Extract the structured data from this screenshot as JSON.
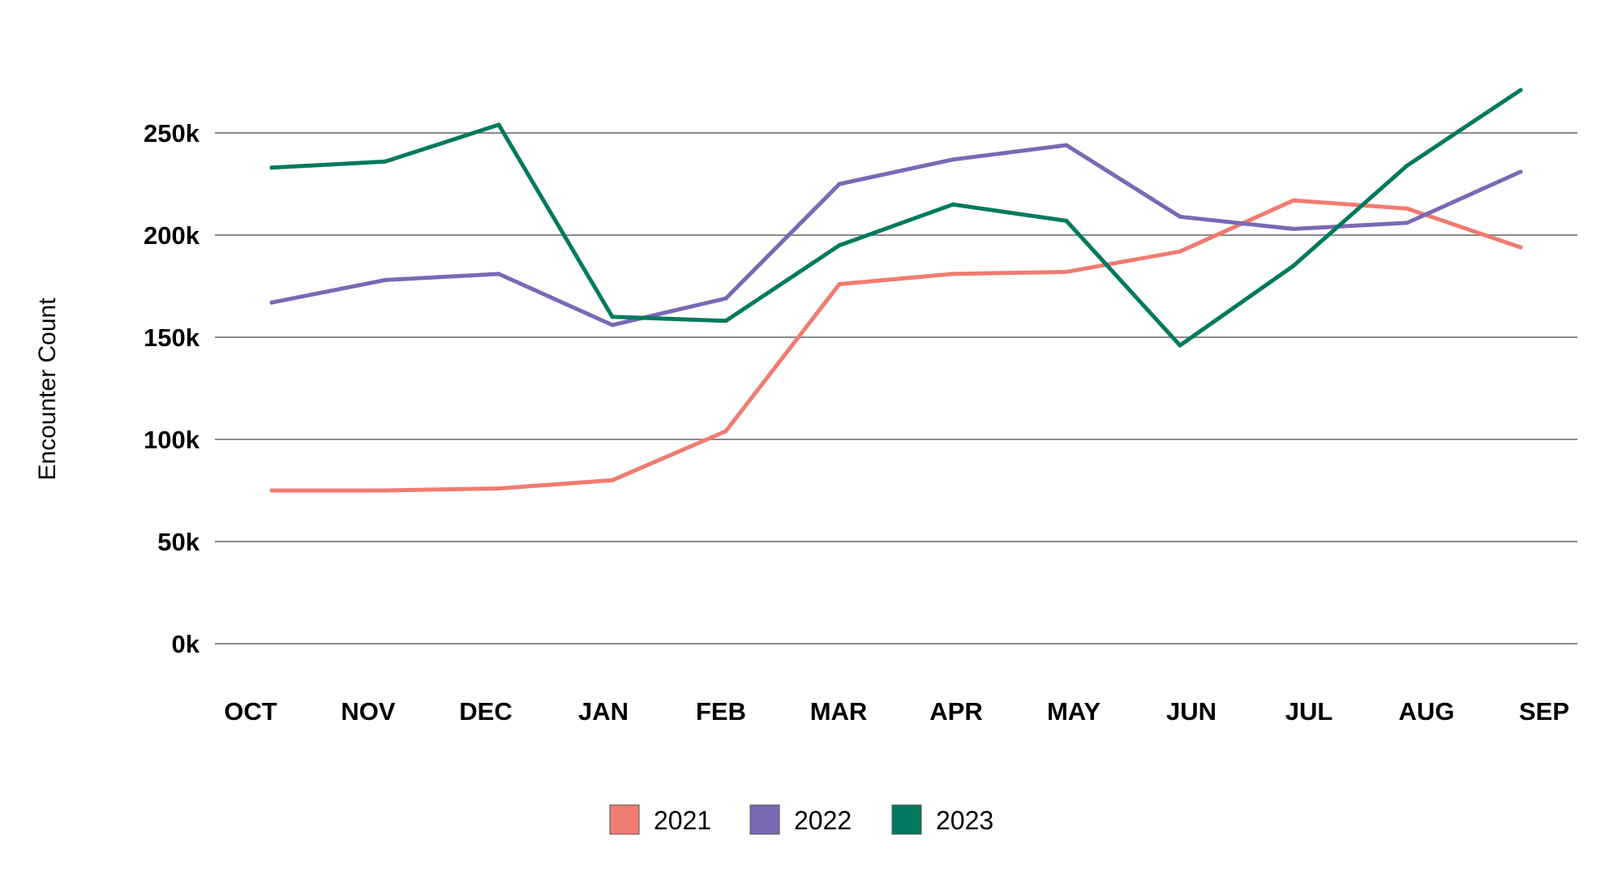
{
  "chart_data": {
    "type": "line",
    "title": "",
    "xlabel": "",
    "ylabel": "Encounter Count",
    "categories": [
      "OCT",
      "NOV",
      "DEC",
      "JAN",
      "FEB",
      "MAR",
      "APR",
      "MAY",
      "JUN",
      "JUL",
      "AUG",
      "SEP"
    ],
    "ylim": [
      0,
      280000
    ],
    "yticks": [
      0,
      50000,
      100000,
      150000,
      200000,
      250000
    ],
    "ytick_labels": [
      "0k",
      "50k",
      "100k",
      "150k",
      "200k",
      "250k"
    ],
    "grid": true,
    "legend_position": "bottom",
    "series": [
      {
        "name": "2021",
        "color": "#F07B70",
        "values": [
          75000,
          75000,
          76000,
          80000,
          104000,
          176000,
          181000,
          182000,
          192000,
          217000,
          213000,
          194000
        ]
      },
      {
        "name": "2022",
        "color": "#7B68B5",
        "values": [
          167000,
          178000,
          181000,
          156000,
          169000,
          225000,
          237000,
          244000,
          209000,
          203000,
          206000,
          231000
        ]
      },
      {
        "name": "2023",
        "color": "#007A5E",
        "values": [
          233000,
          236000,
          254000,
          160000,
          158000,
          195000,
          215000,
          207000,
          146000,
          185000,
          234000,
          271000
        ]
      }
    ]
  }
}
